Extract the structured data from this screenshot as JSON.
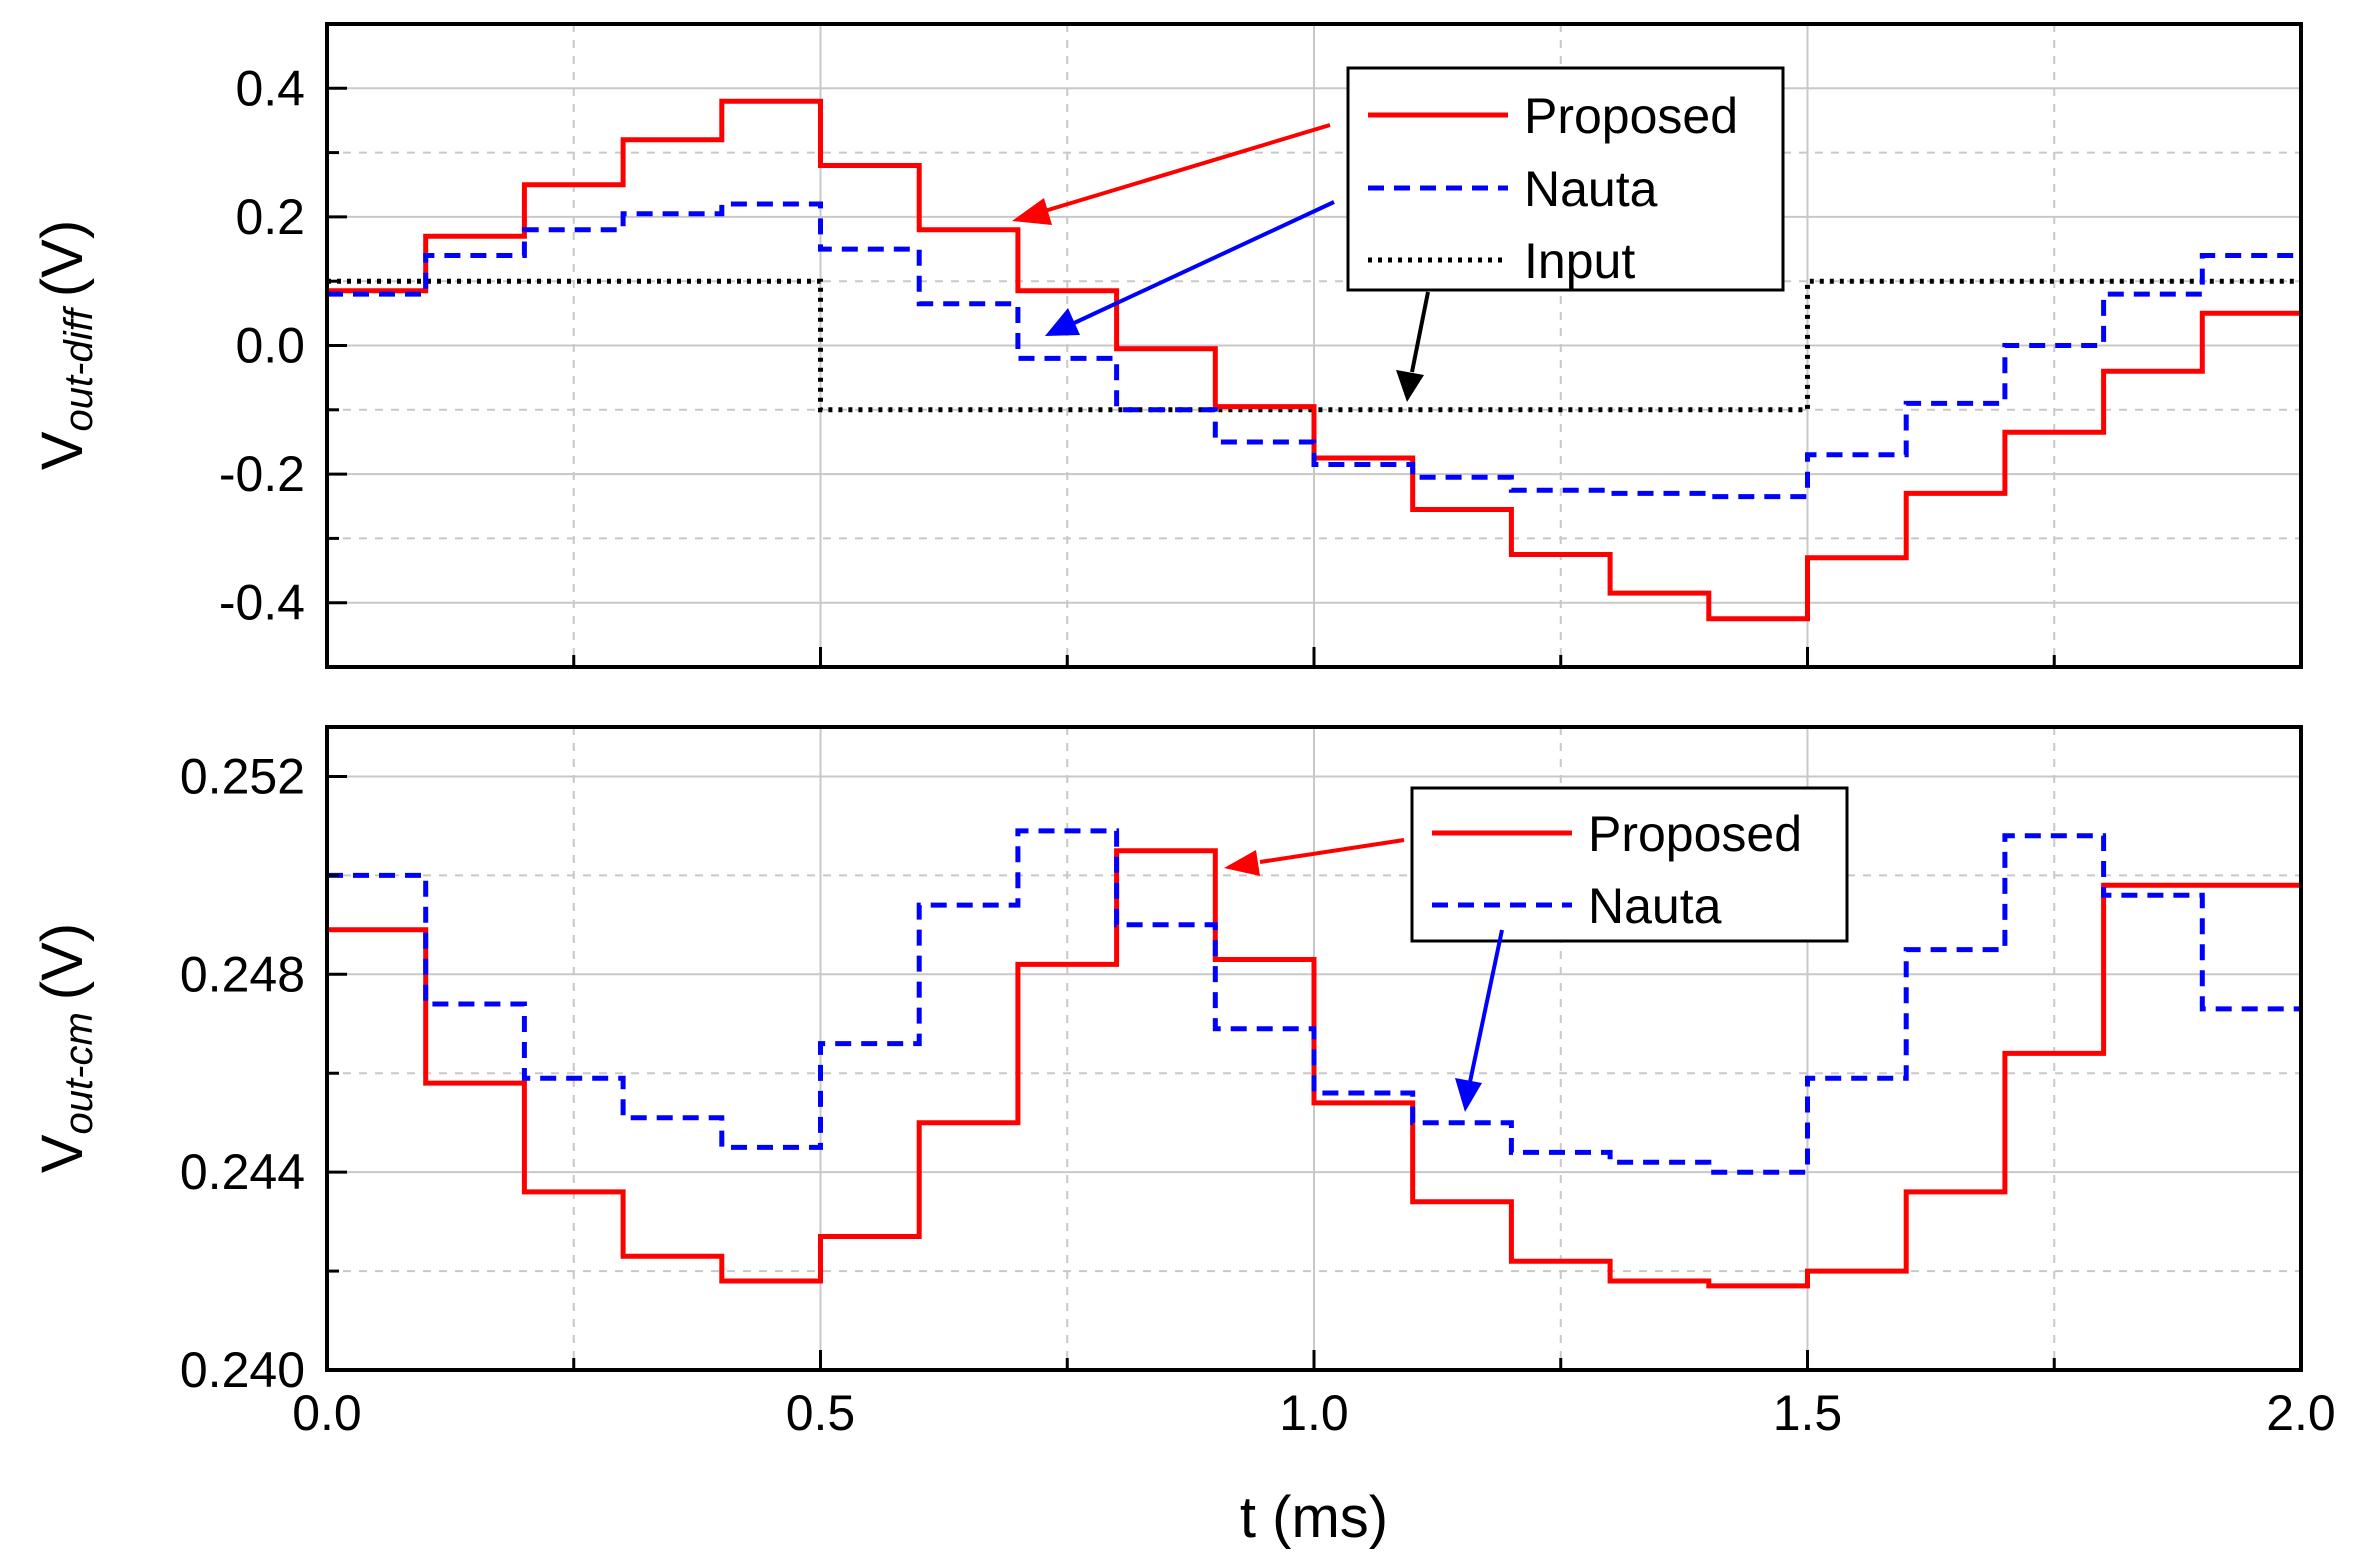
{
  "colors": {
    "proposed": "#ff0000",
    "nauta": "#0000ff",
    "input": "#000000",
    "grid": "#c8c8c8",
    "frame": "#000000"
  },
  "chart_data": [
    {
      "type": "line",
      "ylabel": {
        "main": "V",
        "sub": "out-diff",
        "unit": "(V)"
      },
      "xlim": [
        0,
        2.0
      ],
      "ylim": [
        -0.5,
        0.5
      ],
      "y_ticks": [
        -0.4,
        -0.2,
        0.0,
        0.2,
        0.4
      ],
      "y_tick_labels": [
        "-0.4",
        "-0.2",
        "0.0",
        "0.2",
        "0.4"
      ],
      "grid": true,
      "legend_position": "top-right",
      "series": [
        {
          "name": "Proposed",
          "style": "solid",
          "x": [
            0,
            0.1,
            0.2,
            0.3,
            0.4,
            0.5,
            0.6,
            0.7,
            0.8,
            0.9,
            1.0,
            1.1,
            1.2,
            1.3,
            1.4,
            1.5,
            1.6,
            1.7,
            1.8,
            1.9
          ],
          "y": [
            0.085,
            0.17,
            0.25,
            0.32,
            0.38,
            0.28,
            0.18,
            0.085,
            -0.005,
            -0.095,
            -0.175,
            -0.255,
            -0.325,
            -0.385,
            -0.425,
            -0.33,
            -0.23,
            -0.135,
            -0.04,
            0.05
          ]
        },
        {
          "name": "Nauta",
          "style": "dashed",
          "x": [
            0,
            0.1,
            0.2,
            0.3,
            0.4,
            0.5,
            0.6,
            0.7,
            0.8,
            0.9,
            1.0,
            1.1,
            1.2,
            1.3,
            1.4,
            1.5,
            1.6,
            1.7,
            1.8,
            1.9
          ],
          "y": [
            0.08,
            0.14,
            0.18,
            0.205,
            0.22,
            0.15,
            0.065,
            -0.02,
            -0.1,
            -0.15,
            -0.185,
            -0.205,
            -0.225,
            -0.23,
            -0.235,
            -0.17,
            -0.09,
            0.0,
            0.08,
            0.14
          ]
        },
        {
          "name": "Input",
          "style": "dotted",
          "x": [
            0,
            0.5,
            1.5
          ],
          "y": [
            0.1,
            -0.1,
            0.1
          ]
        }
      ]
    },
    {
      "type": "line",
      "ylabel": {
        "main": "V",
        "sub": "out-cm",
        "unit": "(V)"
      },
      "xlabel": "t (ms)",
      "xlim": [
        0,
        2.0
      ],
      "x_ticks": [
        0.0,
        0.5,
        1.0,
        1.5,
        2.0
      ],
      "x_tick_labels": [
        "0.0",
        "0.5",
        "1.0",
        "1.5",
        "2.0"
      ],
      "ylim": [
        0.24,
        0.253
      ],
      "y_ticks": [
        0.24,
        0.244,
        0.248,
        0.252
      ],
      "y_tick_labels": [
        "0.240",
        "0.244",
        "0.248",
        "0.252"
      ],
      "grid": true,
      "legend_position": "top-right",
      "series": [
        {
          "name": "Proposed",
          "style": "solid",
          "x": [
            0,
            0.1,
            0.2,
            0.3,
            0.4,
            0.5,
            0.6,
            0.7,
            0.8,
            0.9,
            1.0,
            1.1,
            1.2,
            1.3,
            1.4,
            1.5,
            1.6,
            1.7,
            1.8
          ],
          "y": [
            0.2489,
            0.2458,
            0.2436,
            0.2423,
            0.2418,
            0.2427,
            0.245,
            0.2482,
            0.2505,
            0.2483,
            0.2454,
            0.2434,
            0.2422,
            0.2418,
            0.2417,
            0.242,
            0.2436,
            0.2464,
            0.2498
          ]
        },
        {
          "name": "Nauta",
          "style": "dashed",
          "x": [
            0,
            0.1,
            0.2,
            0.3,
            0.4,
            0.5,
            0.6,
            0.7,
            0.8,
            0.9,
            1.0,
            1.1,
            1.2,
            1.3,
            1.4,
            1.5,
            1.6,
            1.7,
            1.8,
            1.9
          ],
          "y": [
            0.25,
            0.2474,
            0.2459,
            0.2451,
            0.2445,
            0.2466,
            0.2494,
            0.2509,
            0.249,
            0.2469,
            0.2456,
            0.245,
            0.2444,
            0.2442,
            0.244,
            0.2459,
            0.2485,
            0.2508,
            0.2496,
            0.2473
          ]
        }
      ]
    }
  ]
}
